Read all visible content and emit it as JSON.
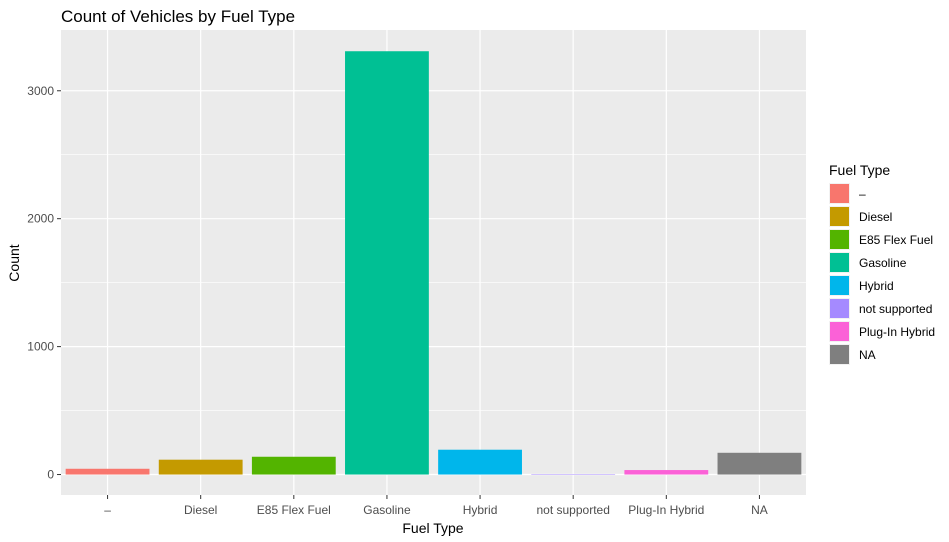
{
  "chart_data": {
    "type": "bar",
    "title": "Count of Vehicles by Fuel Type",
    "xlabel": "Fuel Type",
    "ylabel": "Count",
    "categories": [
      "–",
      "Diesel",
      "E85 Flex Fuel",
      "Gasoline",
      "Hybrid",
      "not supported",
      "Plug-In Hybrid",
      "NA"
    ],
    "values": [
      45,
      116,
      139,
      3309,
      194,
      2,
      35,
      170
    ],
    "colors": [
      "#F8766D",
      "#CD9600",
      "#7CAE00",
      "#00BE67",
      "#00BFC4",
      "#00A9FF",
      "#C77CFF",
      "#FF61CC"
    ],
    "bar_colors": [
      "#F8766D",
      "#C49A00",
      "#53B400",
      "#00C094",
      "#00B6EB",
      "#A58AFF",
      "#FB61D7",
      "#7F7F7F"
    ],
    "y_ticks": [
      0,
      1000,
      2000,
      3000
    ],
    "ylim": [
      -160,
      3475
    ],
    "grid": true,
    "legend": {
      "title": "Fuel Type",
      "placement": "right",
      "entries": [
        "–",
        "Diesel",
        "E85 Flex Fuel",
        "Gasoline",
        "Hybrid",
        "not supported",
        "Plug-In Hybrid",
        "NA"
      ]
    }
  }
}
